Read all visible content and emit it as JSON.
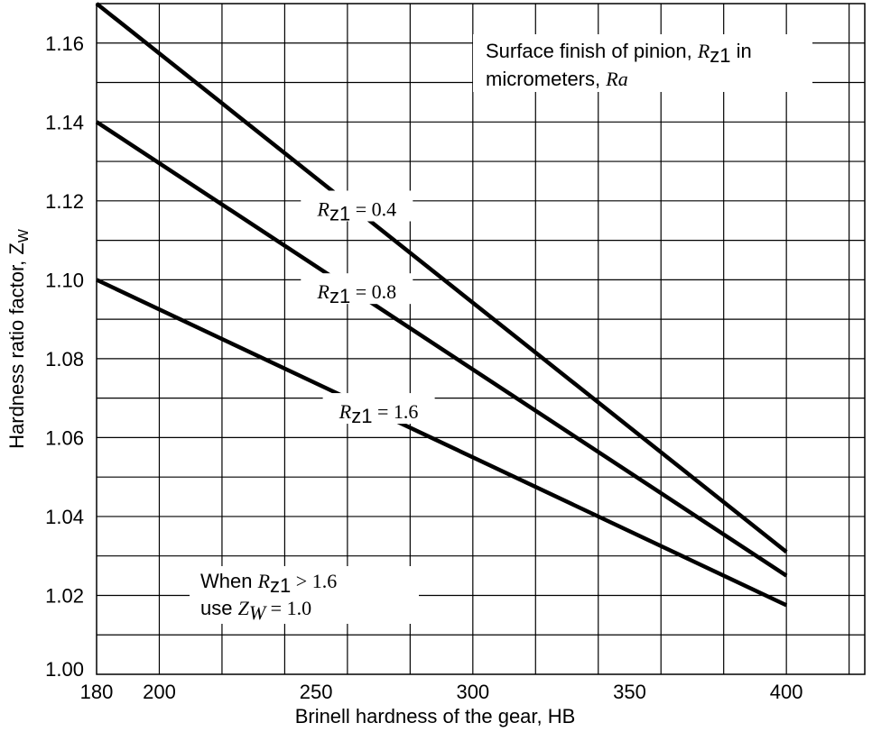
{
  "chart_data": {
    "type": "line",
    "title": "",
    "xlabel": "Brinell hardness of the gear, HB",
    "ylabel": {
      "main": "Hardness ratio factor, Z",
      "sub": "W"
    },
    "x_ticks": [
      "180",
      "200",
      "250",
      "300",
      "350",
      "400"
    ],
    "y_ticks": [
      "1.00",
      "1.02",
      "1.04",
      "1.06",
      "1.08",
      "1.10",
      "1.12",
      "1.14",
      "1.16"
    ],
    "xlim": [
      180,
      425
    ],
    "ylim": [
      1.0,
      1.17
    ],
    "grid": true,
    "series": [
      {
        "name": "Rz1 = 0.4",
        "x": [
          180,
          400
        ],
        "y": [
          1.17,
          1.031
        ]
      },
      {
        "name": "Rz1 = 0.8",
        "x": [
          180,
          400
        ],
        "y": [
          1.14,
          1.025
        ]
      },
      {
        "name": "Rz1 = 1.6",
        "x": [
          180,
          400
        ],
        "y": [
          1.1,
          1.0175
        ]
      }
    ],
    "series_labels": [
      {
        "sym": "R",
        "sub": "z1",
        "rest": " = 0.4"
      },
      {
        "sym": "R",
        "sub": "z1",
        "rest": " = 0.8"
      },
      {
        "sym": "R",
        "sub": "z1",
        "rest": " = 1.6"
      }
    ],
    "annotations": {
      "surface_finish": {
        "line1_a": "Surface finish of pinion, ",
        "line1_sym": "R",
        "line1_sub": "z1",
        "line1_b": " in",
        "line2_a": "micrometers, ",
        "line2_sym": "Ra"
      },
      "when_note": {
        "line1_a": "When ",
        "line1_sym": "R",
        "line1_sub": "z1",
        "line1_b": " > 1.6",
        "line2_a": "use ",
        "line2_sym": "Z",
        "line2_sub": "W",
        "line2_b": " = 1.0"
      }
    }
  }
}
